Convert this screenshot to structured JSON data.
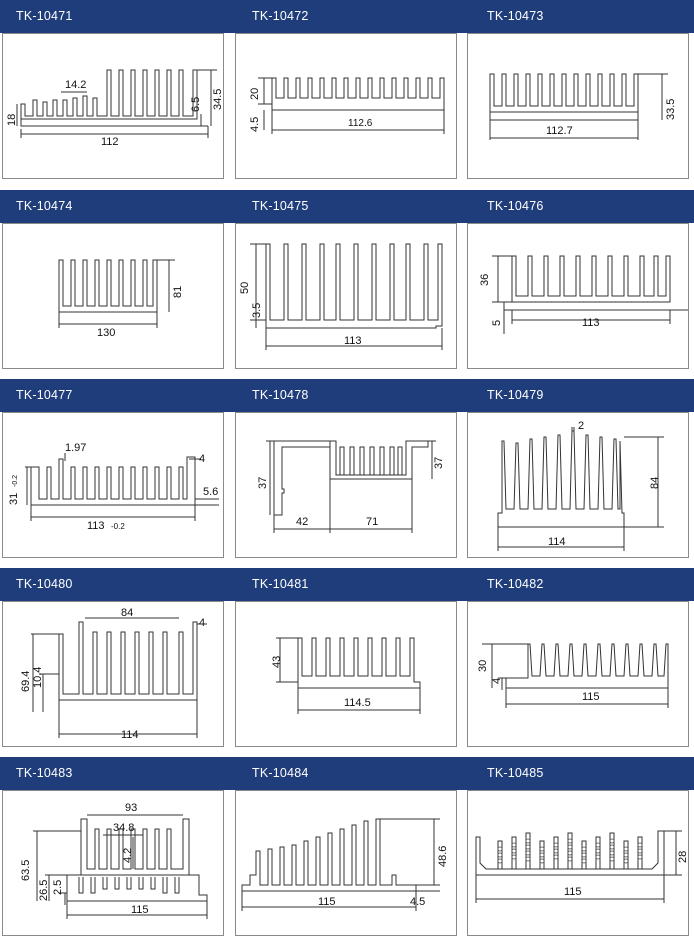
{
  "rows": [
    {
      "codes": [
        "TK-10471",
        "TK-10472",
        "TK-10473"
      ]
    },
    {
      "codes": [
        "TK-10474",
        "TK-10475",
        "TK-10476"
      ]
    },
    {
      "codes": [
        "TK-10477",
        "TK-10478",
        "TK-10479"
      ]
    },
    {
      "codes": [
        "TK-10480",
        "TK-10481",
        "TK-10482"
      ]
    },
    {
      "codes": [
        "TK-10483",
        "TK-10484",
        "TK-10485"
      ]
    }
  ],
  "profiles": {
    "p10471": {
      "d1": "14.2",
      "d2": "18",
      "d3": "6.5",
      "d4": "34.5",
      "d5": "112"
    },
    "p10472": {
      "d1": "20",
      "d2": "4.5",
      "d3": "112.6"
    },
    "p10473": {
      "d1": "33.5",
      "d2": "112.7"
    },
    "p10474": {
      "d1": "81",
      "d2": "130"
    },
    "p10475": {
      "d1": "50",
      "d2": "3.5",
      "d3": "113"
    },
    "p10476": {
      "d1": "36",
      "d2": "5",
      "d3": "113"
    },
    "p10477": {
      "d1": "1.97",
      "d2": "4",
      "d3": "31",
      "d3t": "-0.2",
      "d4": "5.6",
      "d5": "113",
      "d5t": "-0.2"
    },
    "p10478": {
      "d1": "37",
      "d2": "37",
      "d3": "42",
      "d4": "71"
    },
    "p10479": {
      "d1": "2",
      "d2": "84",
      "d3": "114"
    },
    "p10480": {
      "d1": "84",
      "d2": "4",
      "d3": "69.4",
      "d4": "10.4",
      "d5": "114"
    },
    "p10481": {
      "d1": "43",
      "d2": "114.5"
    },
    "p10482": {
      "d1": "30",
      "d2": "4",
      "d3": "115"
    },
    "p10483": {
      "d1": "93",
      "d2": "34.8",
      "d3": "4.2",
      "d4": "63.5",
      "d5": "26.5",
      "d6": "2.5",
      "d7": "115"
    },
    "p10484": {
      "d1": "48.6",
      "d2": "115",
      "d3": "4.5"
    },
    "p10485": {
      "d1": "28",
      "d2": "115"
    }
  },
  "colors": {
    "band": "#1f3d7a",
    "border": "#8a8a8a",
    "line": "#333333"
  }
}
